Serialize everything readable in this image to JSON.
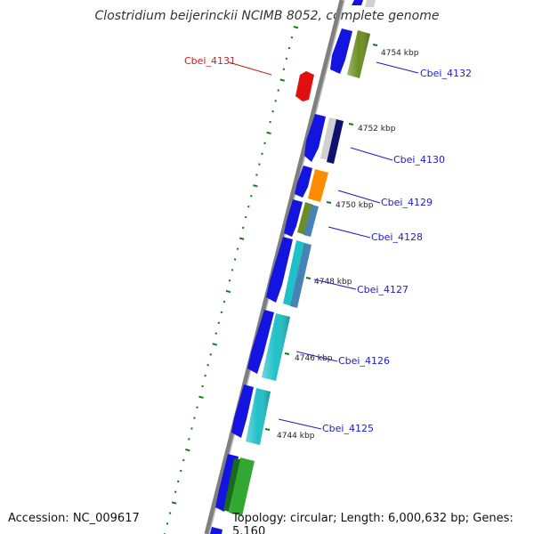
{
  "title": "Clostridium beijerinckii NCIMB 8052, complete genome",
  "footer": {
    "accession": "Accession: NC_009617",
    "topology": "Topology: circular; Length: 6,000,632 bp; Genes: 5,160"
  },
  "colors": {
    "backbone": "#808080",
    "tick": "#1a7a1a",
    "label_forward": "#1c1ccc",
    "label_reverse": "#cc1c1c"
  },
  "ticks": [
    {
      "label": "4754 kbp",
      "position_kbp": 4754
    },
    {
      "label": "4752 kbp",
      "position_kbp": 4752
    },
    {
      "label": "4750 kbp",
      "position_kbp": 4750
    },
    {
      "label": "4748 kbp",
      "position_kbp": 4748
    },
    {
      "label": "4746 kbp",
      "position_kbp": 4746
    },
    {
      "label": "4744 kbp",
      "position_kbp": 4744
    }
  ],
  "gene_labels": [
    {
      "name": "Cbei_4131",
      "strand": "reverse"
    },
    {
      "name": "Cbei_4132",
      "strand": "forward"
    },
    {
      "name": "Cbei_4130",
      "strand": "forward"
    },
    {
      "name": "Cbei_4129",
      "strand": "forward"
    },
    {
      "name": "Cbei_4128",
      "strand": "forward"
    },
    {
      "name": "Cbei_4127",
      "strand": "forward"
    },
    {
      "name": "Cbei_4126",
      "strand": "forward"
    },
    {
      "name": "Cbei_4125",
      "strand": "forward"
    }
  ],
  "features": [
    {
      "name": "Cbei_4131",
      "color": "#e01010",
      "ring": "reverse"
    },
    {
      "name": "Cbei_4132",
      "color": "#1414e0",
      "ring": "cds"
    },
    {
      "name": "Cbei_4132",
      "color": "#6b8e23",
      "ring": "cog"
    },
    {
      "name": "Cbei_4130",
      "color": "#1414e0",
      "ring": "cds"
    },
    {
      "name": "Cbei_4130",
      "color": "#d0d0d0",
      "ring": "cog"
    },
    {
      "name": "Cbei_4130",
      "color": "#101070",
      "ring": "cog2"
    },
    {
      "name": "Cbei_4129",
      "color": "#1414e0",
      "ring": "cds"
    },
    {
      "name": "Cbei_4129",
      "color": "#ff8c00",
      "ring": "cog"
    },
    {
      "name": "Cbei_4128",
      "color": "#1414e0",
      "ring": "cds"
    },
    {
      "name": "Cbei_4128",
      "color": "#6b8e23",
      "ring": "cog"
    },
    {
      "name": "Cbei_4128",
      "color": "#4682b4",
      "ring": "cog2"
    },
    {
      "name": "Cbei_4127",
      "color": "#1414e0",
      "ring": "cds"
    },
    {
      "name": "Cbei_4127",
      "color": "#20c0c8",
      "ring": "cog"
    },
    {
      "name": "Cbei_4127",
      "color": "#4682b4",
      "ring": "cog2"
    },
    {
      "name": "Cbei_4126",
      "color": "#1414e0",
      "ring": "cds"
    },
    {
      "name": "Cbei_4126",
      "color": "#20c0c8",
      "ring": "cog"
    },
    {
      "name": "Cbei_4125",
      "color": "#1414e0",
      "ring": "cds"
    },
    {
      "name": "Cbei_4125",
      "color": "#20c0c8",
      "ring": "cog"
    },
    {
      "name": "",
      "color": "#1414e0",
      "ring": "cds"
    },
    {
      "name": "",
      "color": "#32a832",
      "ring": "cog"
    }
  ]
}
